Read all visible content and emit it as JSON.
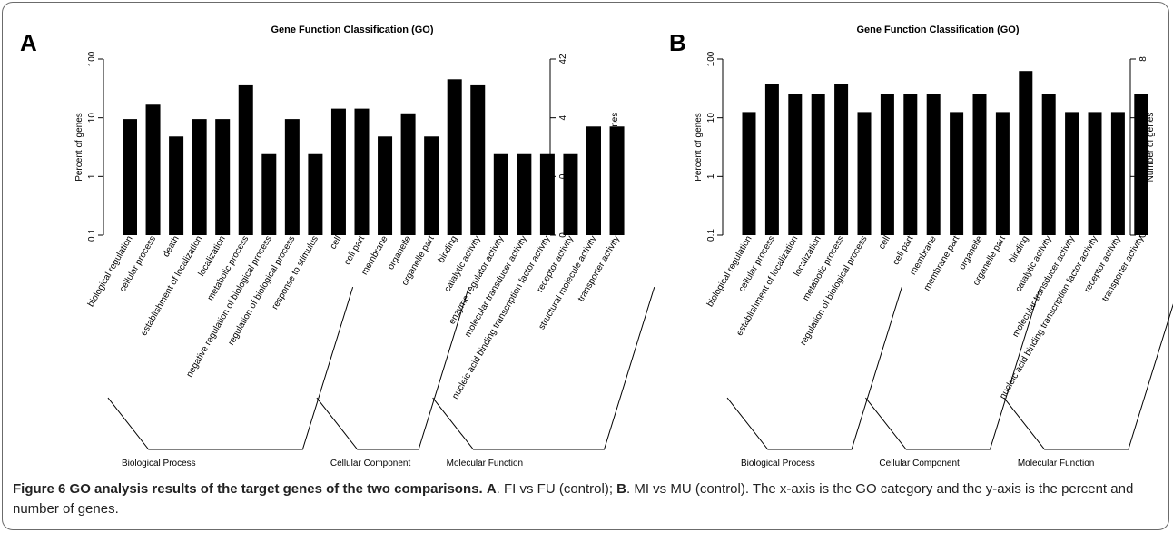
{
  "chart_data": [
    {
      "type": "bar",
      "panel_label": "A",
      "title": "Gene Function Classification (GO)",
      "ylabel": "Percent of genes",
      "y2label": "Number of genes",
      "yscale": "log",
      "ylim": [
        0.1,
        100
      ],
      "yticks": [
        "0.1",
        "1",
        "10",
        "100"
      ],
      "y2ticks": [
        "0",
        "0",
        "4",
        "42"
      ],
      "categories": [
        "biological regulation",
        "cellular process",
        "death",
        "establishment of localization",
        "localization",
        "metabolic process",
        "negative regulation of biological process",
        "regulation of biological process",
        "response to stimulus",
        "cell",
        "cell part",
        "membrane",
        "organelle",
        "organelle part",
        "binding",
        "catalytic activity",
        "enzyme regulator activity",
        "molecular transducer activity",
        "nucleic acid binding transcription factor activity",
        "receptor activity",
        "structural molecule activity",
        "transporter activity"
      ],
      "values": [
        9.5,
        16.7,
        4.8,
        9.5,
        9.5,
        35.7,
        2.4,
        9.5,
        2.4,
        14.3,
        14.3,
        4.8,
        11.9,
        4.8,
        45.2,
        35.7,
        2.4,
        2.4,
        2.4,
        2.4,
        7.1,
        7.1
      ],
      "groups": [
        {
          "name": "Biological Process",
          "start": 0,
          "end": 8
        },
        {
          "name": "Cellular Component",
          "start": 9,
          "end": 13
        },
        {
          "name": "Molecular Function",
          "start": 14,
          "end": 21
        }
      ]
    },
    {
      "type": "bar",
      "panel_label": "B",
      "title": "Gene Function Classification (GO)",
      "ylabel": "Percent of genes",
      "y2label": "Number of genes",
      "yscale": "log",
      "ylim": [
        0.1,
        100
      ],
      "yticks": [
        "0.1",
        "1",
        "10",
        "100"
      ],
      "y2ticks": [
        "0",
        "0",
        "1",
        "8"
      ],
      "categories": [
        "biological regulation",
        "cellular process",
        "establishment of localization",
        "localization",
        "metabolic process",
        "regulation of biological process",
        "cell",
        "cell part",
        "membrane",
        "membrane part",
        "organelle",
        "organelle part",
        "binding",
        "catalytic activity",
        "molecular transducer activity",
        "nucleic acid binding transcription factor activity",
        "receptor activity",
        "transporter activity"
      ],
      "values": [
        12.5,
        37.5,
        25,
        25,
        37.5,
        12.5,
        25,
        25,
        25,
        12.5,
        25,
        12.5,
        62.5,
        25,
        12.5,
        12.5,
        12.5,
        25
      ],
      "groups": [
        {
          "name": "Biological Process",
          "start": 0,
          "end": 5
        },
        {
          "name": "Cellular Component",
          "start": 6,
          "end": 11
        },
        {
          "name": "Molecular Function",
          "start": 12,
          "end": 17
        }
      ]
    }
  ],
  "caption": {
    "figure_label": "Figure 6",
    "headline": "GO analysis results of the target genes of the two comparisons.",
    "a_label": "A",
    "a_text": ". FI vs FU (control); ",
    "b_label": "B",
    "b_text": ". MI vs MU (control). The x-axis is the GO category and the y-axis is the percent and number of genes."
  }
}
